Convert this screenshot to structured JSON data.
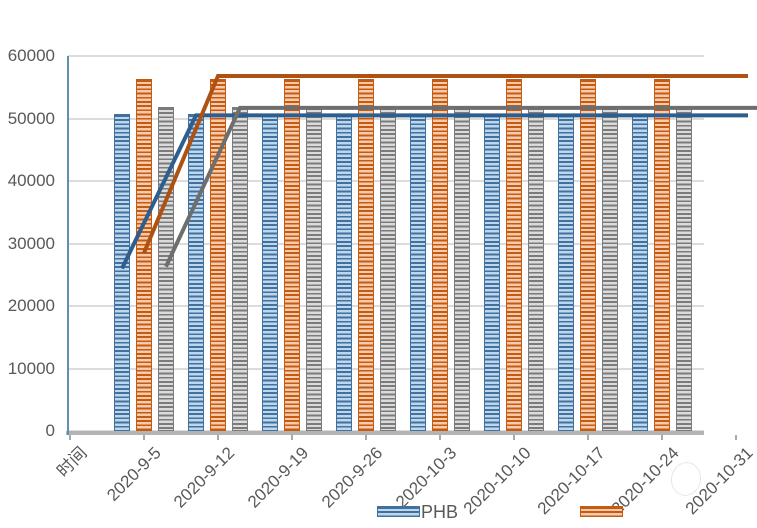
{
  "chart_data": {
    "type": "bar",
    "subtype": "combo-clustered-bar-with-lines",
    "title": "",
    "xlabel": "",
    "ylabel": "",
    "x_axis_first_category": "时间",
    "categories": [
      "时间",
      "2020-9-5",
      "2020-9-12",
      "2020-9-19",
      "2020-9-26",
      "2020-10-3",
      "2020-10-10",
      "2020-10-17",
      "2020-10-24",
      "2020-10-31"
    ],
    "y_ticks": [
      60000,
      50000,
      40000,
      30000,
      20000,
      10000,
      0
    ],
    "ylim": [
      0,
      60000
    ],
    "grid": "horizontal-on",
    "legend_position": "bottom",
    "series": [
      {
        "name": "PHB",
        "type": "bar",
        "pattern": "horizontal-stripes",
        "color_dark": "#41719c",
        "color_light": "#bdd7ee",
        "values": [
          null,
          50700,
          50700,
          50700,
          50700,
          50700,
          50700,
          50700,
          50700,
          null
        ]
      },
      {
        "name": "",
        "type": "bar",
        "pattern": "horizontal-stripes",
        "color_dark": "#c55a11",
        "color_light": "#f6cbad",
        "values": [
          null,
          56300,
          56300,
          56300,
          56300,
          56300,
          56300,
          56300,
          56300,
          null
        ]
      },
      {
        "name": "",
        "type": "bar",
        "pattern": "horizontal-stripes",
        "color_dark": "#7b7b7b",
        "color_light": "#dbdbdb",
        "values": [
          null,
          51900,
          51900,
          51900,
          51900,
          51900,
          51900,
          51900,
          51900,
          null
        ]
      },
      {
        "name": "",
        "type": "line",
        "color": "#2e5e8e",
        "values": [
          null,
          26000,
          50500,
          50500,
          50500,
          50500,
          50500,
          50500,
          50500,
          50500
        ]
      },
      {
        "name": "",
        "type": "line",
        "color": "#ae5213",
        "values": [
          null,
          28500,
          56800,
          56800,
          56800,
          56800,
          56800,
          56800,
          56800,
          56800
        ]
      },
      {
        "name": "",
        "type": "line",
        "color": "#6e6e6e",
        "values": [
          null,
          26300,
          51700,
          51700,
          51700,
          51700,
          51700,
          51700,
          51700,
          51700
        ]
      }
    ],
    "legend_items_visible": [
      {
        "label": "PHB",
        "series_index": 0
      },
      {
        "label": "",
        "series_index": 1
      }
    ]
  },
  "colors": {
    "axis_label": "#595959",
    "gridline": "#dcdcdc",
    "y_axis_line": "#5e90b0",
    "x_axis_line": "#b3b3b3",
    "background": "#ffffff"
  }
}
